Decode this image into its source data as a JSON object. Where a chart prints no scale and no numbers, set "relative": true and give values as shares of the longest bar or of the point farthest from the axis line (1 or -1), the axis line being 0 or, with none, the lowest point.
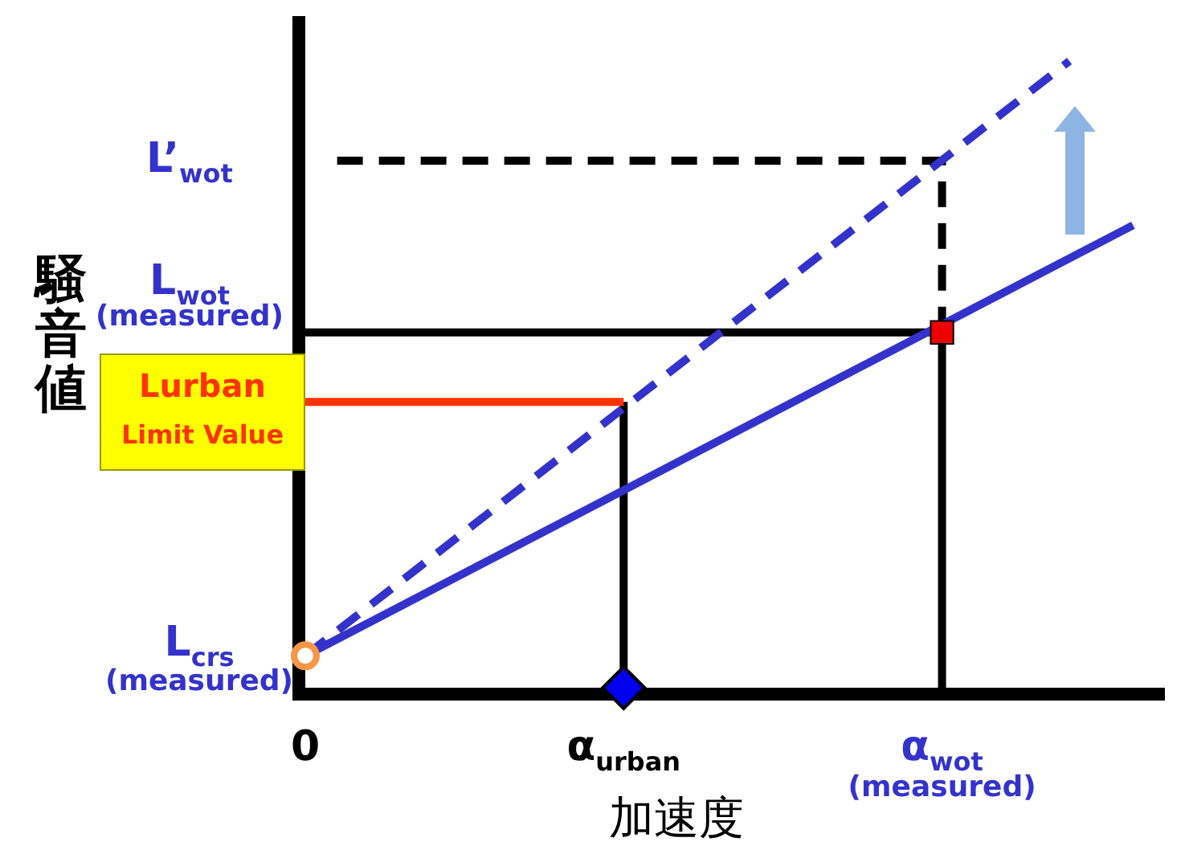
{
  "chart_data": {
    "type": "line",
    "relative": true,
    "xlabel": "加速度",
    "ylabel": "騒音値",
    "categories": [
      "0",
      null,
      null,
      null,
      null,
      null,
      null,
      null,
      null,
      null,
      "α$_{urban}$",
      null,
      null,
      null,
      null,
      null,
      null,
      null,
      null,
      null,
      "α$_{wot}$\n(measured)",
      null,
      null,
      null,
      null,
      null,
      null,
      null
    ],
    "annotations": [
      "L’$_{wot}$",
      "L$_{wot}$\n(measured)",
      "Lurban\nLimit Value",
      "L$_{crs}$\n(measured)"
    ],
    "series": [
      {
        "values": [
          0.051,
          null,
          null,
          null,
          null,
          null,
          null,
          null,
          null,
          null,
          null,
          null,
          null,
          null,
          null,
          null,
          null,
          null,
          null,
          null,
          null,
          null,
          null,
          null,
          null,
          null,
          0.738,
          null
        ],
        "color": "#3333cc",
        "line_style": "solid",
        "marker": "none"
      },
      {
        "values": [
          0.051,
          null,
          null,
          null,
          null,
          null,
          null,
          null,
          null,
          null,
          null,
          null,
          null,
          null,
          null,
          null,
          null,
          null,
          null,
          null,
          null,
          null,
          null,
          null,
          1,
          null,
          null,
          null
        ],
        "color": "#3333cc",
        "line_style": "dashed",
        "marker": "none"
      },
      {
        "values": [
          null,
          0.841,
          null,
          null,
          null,
          null,
          null,
          null,
          null,
          null,
          null,
          null,
          null,
          null,
          null,
          null,
          null,
          null,
          null,
          null,
          0.841,
          null,
          null,
          null,
          null,
          null,
          null,
          null
        ],
        "color": "#000000",
        "line_style": "dashed",
        "marker": "none"
      },
      {
        "x": [
          "α$_{wot}$\n(measured)",
          "α$_{wot}$\n(measured)"
        ],
        "values": [
          0.567,
          0.841
        ],
        "color": "#000000",
        "line_style": "dashed",
        "marker": "none"
      },
      {
        "values": [
          0.567,
          null,
          null,
          null,
          null,
          null,
          null,
          null,
          null,
          null,
          null,
          null,
          null,
          null,
          null,
          null,
          null,
          null,
          null,
          null,
          0.567,
          null,
          null,
          null,
          null,
          null,
          null,
          null
        ],
        "color": "#000000",
        "line_style": "solid",
        "marker": "none"
      },
      {
        "x": [
          "α$_{wot}$\n(measured)",
          "α$_{wot}$\n(measured)"
        ],
        "values": [
          0,
          0.567
        ],
        "color": "#000000",
        "line_style": "solid",
        "marker": "none"
      },
      {
        "values": [
          0.456,
          null,
          null,
          null,
          null,
          null,
          null,
          null,
          null,
          null,
          0.456,
          null,
          null,
          null,
          null,
          null,
          null,
          null,
          null,
          null,
          null,
          null,
          null,
          null,
          null,
          null,
          null,
          null
        ],
        "color": "#ff3300",
        "line_style": "solid",
        "marker": "none"
      },
      {
        "x": [
          "α$_{urban}$",
          "α$_{urban}$"
        ],
        "values": [
          0,
          0.456
        ],
        "color": "#000000",
        "line_style": "solid",
        "marker": "diamond",
        "colors": [
          "#0000ee",
          null
        ]
      },
      {
        "type": "scatter",
        "x": [
          "α$_{wot}$\n(measured)"
        ],
        "values": [
          0.567
        ],
        "color": "#ee0000",
        "marker": "square"
      },
      {
        "type": "scatter",
        "x": [
          "0"
        ],
        "values": [
          0.051
        ],
        "color": "#f79646",
        "marker": "circle"
      }
    ]
  }
}
